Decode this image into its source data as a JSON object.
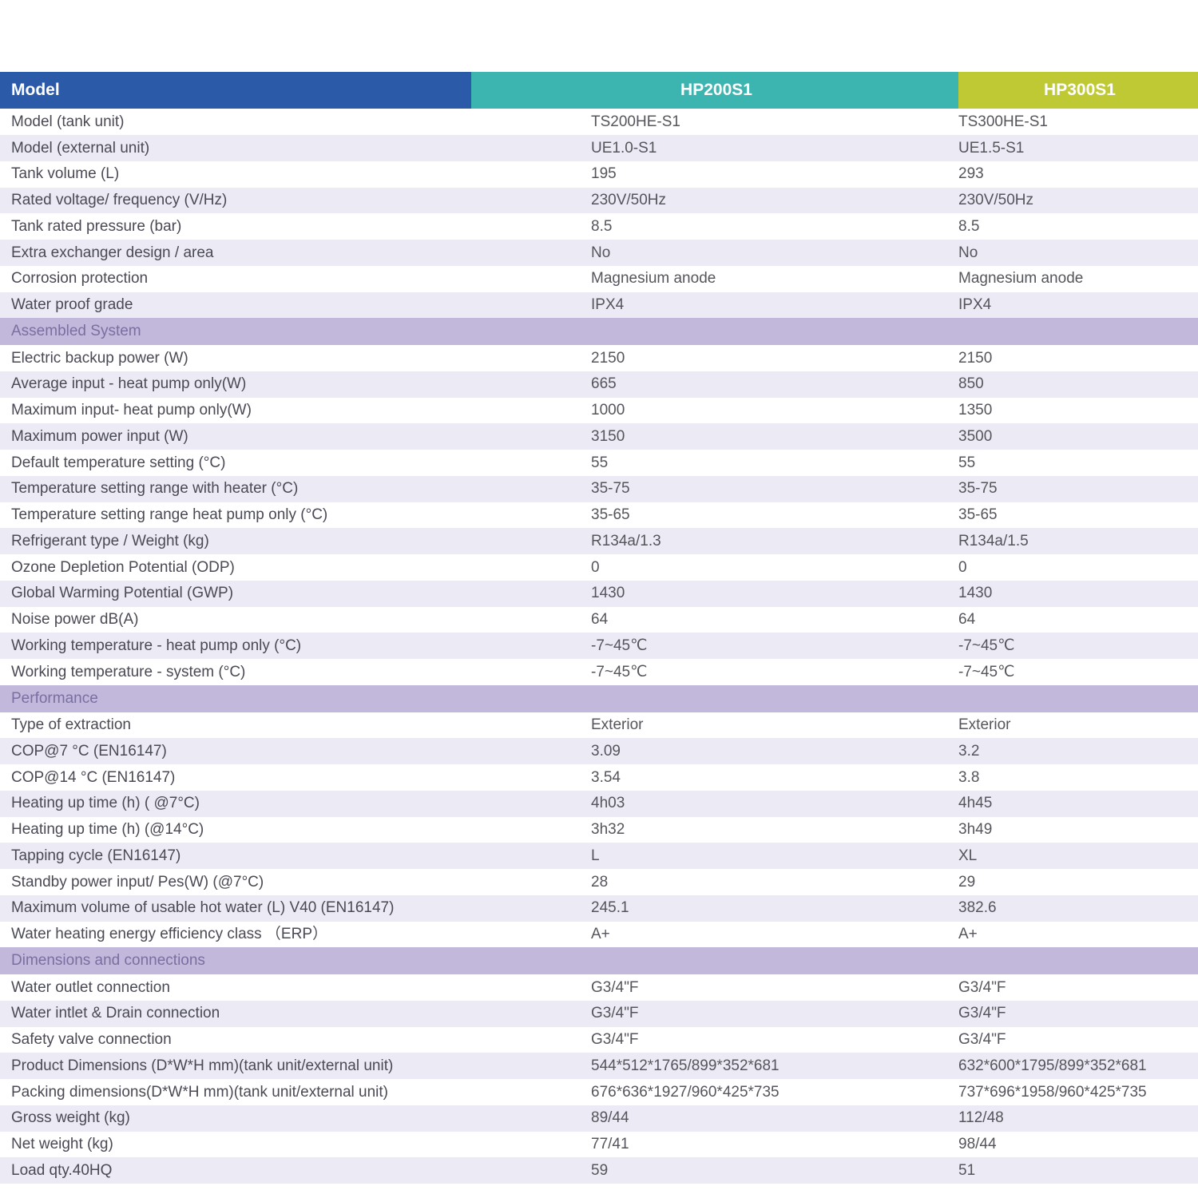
{
  "colors": {
    "hdr_label": "#2b5aa8",
    "hdr_a": "#3cb4b0",
    "hdr_b": "#bfc934",
    "sect_bg": "#c1b8db",
    "row_even": "#ffffff",
    "row_odd": "#eceaf4",
    "label_text": "#4a4a55",
    "value_text": "#55555c"
  },
  "header": {
    "label": "Model",
    "col_a": "HP200S1",
    "col_b": "HP300S1"
  },
  "sections": [
    {
      "title": null,
      "rows": [
        {
          "label": "Model (tank unit)",
          "a": "TS200HE-S1",
          "b": "TS300HE-S1"
        },
        {
          "label": "Model (external unit)",
          "a": "UE1.0-S1",
          "b": "UE1.5-S1"
        },
        {
          "label": "Tank volume (L)",
          "a": "195",
          "b": "293"
        },
        {
          "label": "Rated voltage/ frequency (V/Hz)",
          "a": "230V/50Hz",
          "b": "230V/50Hz"
        },
        {
          "label": "Tank rated pressure (bar)",
          "a": "8.5",
          "b": "8.5"
        },
        {
          "label": "Extra exchanger design / area",
          "a": "No",
          "b": "No"
        },
        {
          "label": "Corrosion protection",
          "a": "Magnesium anode",
          "b": "Magnesium anode"
        },
        {
          "label": "Water proof grade",
          "a": "IPX4",
          "b": "IPX4"
        }
      ]
    },
    {
      "title": "Assembled System",
      "rows": [
        {
          "label": "Electric backup power (W)",
          "a": "2150",
          "b": "2150"
        },
        {
          "label": "Average input - heat pump only(W)",
          "a": "665",
          "b": "850"
        },
        {
          "label": "Maximum input- heat pump only(W)",
          "a": "1000",
          "b": "1350"
        },
        {
          "label": "Maximum power input  (W)",
          "a": "3150",
          "b": "3500"
        },
        {
          "label": "Default temperature setting (°C)",
          "a": "55",
          "b": "55"
        },
        {
          "label": "Temperature setting range with heater (°C)",
          "a": "35-75",
          "b": "35-75"
        },
        {
          "label": "Temperature setting range heat pump only (°C)",
          "a": "35-65",
          "b": "35-65"
        },
        {
          "label": "Refrigerant type / Weight (kg)",
          "a": "R134a/1.3",
          "b": "R134a/1.5"
        },
        {
          "label": "Ozone Depletion Potential (ODP)",
          "a": "0",
          "b": "0"
        },
        {
          "label": "Global Warming Potential (GWP)",
          "a": "1430",
          "b": "1430"
        },
        {
          "label": "Noise power dB(A)",
          "a": "64",
          "b": "64"
        },
        {
          "label": "Working temperature - heat pump only (°C)",
          "a": "-7~45℃",
          "b": "-7~45℃"
        },
        {
          "label": "Working temperature - system (°C)",
          "a": "-7~45℃",
          "b": "-7~45℃"
        }
      ]
    },
    {
      "title": "Performance",
      "rows": [
        {
          "label": "Type of extraction",
          "a": " Exterior",
          "b": " Exterior"
        },
        {
          "label": "COP@7 °C  (EN16147)",
          "a": "3.09",
          "b": "3.2"
        },
        {
          "label": "COP@14 °C (EN16147)",
          "a": "3.54",
          "b": "3.8"
        },
        {
          "label": "Heating up time  (h) ( @7°C)",
          "a": "4h03",
          "b": "4h45"
        },
        {
          "label": "Heating up time  (h)  (@14°C)",
          "a": "3h32",
          "b": "3h49"
        },
        {
          "label": "Tapping cycle (EN16147)",
          "a": "L",
          "b": "XL"
        },
        {
          "label": "Standby power input/ Pes(W)  (@7°C)",
          "a": "28",
          "b": "29"
        },
        {
          "label": "Maximum volume of usable hot water (L) V40  (EN16147)",
          "a": "245.1",
          "b": "382.6"
        },
        {
          "label": "Water heating energy efficiency class （ERP）",
          "a": "A+",
          "b": "A+"
        }
      ]
    },
    {
      "title": "Dimensions and connections",
      "rows": [
        {
          "label": "Water outlet connection",
          "a": "G3/4\"F",
          "b": "G3/4\"F"
        },
        {
          "label": "Water intlet & Drain connection",
          "a": "G3/4\"F",
          "b": "G3/4\"F"
        },
        {
          "label": "Safety valve connection",
          "a": "G3/4\"F",
          "b": "G3/4\"F"
        },
        {
          "label": "Product Dimensions (D*W*H mm)(tank unit/external unit)",
          "a": "544*512*1765/899*352*681",
          "b": "632*600*1795/899*352*681"
        },
        {
          "label": "Packing dimensions(D*W*H mm)(tank unit/external unit)",
          "a": "676*636*1927/960*425*735",
          "b": "737*696*1958/960*425*735"
        },
        {
          "label": "Gross weight (kg)",
          "a": "89/44",
          "b": "112/48"
        },
        {
          "label": "Net weight (kg)",
          "a": "77/41",
          "b": "98/44"
        },
        {
          "label": "Load qty.40HQ",
          "a": "59",
          "b": "51"
        }
      ]
    }
  ]
}
